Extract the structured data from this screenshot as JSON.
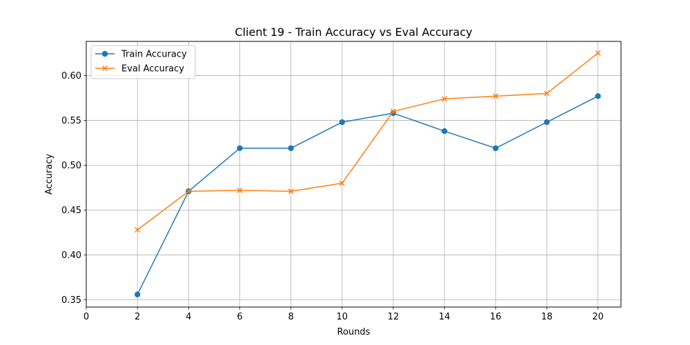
{
  "chart_data": {
    "type": "line",
    "title": "Client 19 - Train Accuracy vs Eval Accuracy",
    "xlabel": "Rounds",
    "ylabel": "Accuracy",
    "xlim": [
      0,
      20.9
    ],
    "ylim": [
      0.342,
      0.638
    ],
    "xticks": [
      0,
      2,
      4,
      6,
      8,
      10,
      12,
      14,
      16,
      18,
      20
    ],
    "yticks": [
      0.35,
      0.4,
      0.45,
      0.5,
      0.55,
      0.6
    ],
    "ytick_labels": [
      "0.35",
      "0.40",
      "0.45",
      "0.50",
      "0.55",
      "0.60"
    ],
    "grid": true,
    "legend_position": "top-left",
    "x": [
      2,
      4,
      6,
      8,
      10,
      12,
      14,
      16,
      18,
      20
    ],
    "series": [
      {
        "name": "Train Accuracy",
        "color": "#1f77b4",
        "marker": "circle",
        "values": [
          0.356,
          0.471,
          0.519,
          0.519,
          0.548,
          0.558,
          0.538,
          0.519,
          0.548,
          0.577
        ]
      },
      {
        "name": "Eval Accuracy",
        "color": "#ff7f0e",
        "marker": "x",
        "values": [
          0.428,
          0.471,
          0.472,
          0.471,
          0.48,
          0.56,
          0.574,
          0.577,
          0.58,
          0.625
        ]
      }
    ]
  }
}
